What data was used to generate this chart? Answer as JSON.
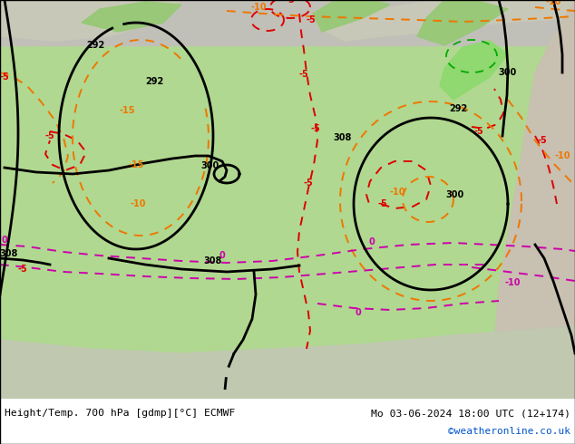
{
  "title_left": "Height/Temp. 700 hPa [gdmp][°C] ECMWF",
  "title_right": "Mo 03-06-2024 18:00 UTC (12+174)",
  "credit": "©weatheronline.co.uk",
  "credit_color": "#0055cc",
  "bg_green": "#b0d890",
  "bg_grey": "#c8c8c8",
  "bg_white": "#ffffff",
  "land_green_dark": "#8ec87a",
  "land_grey": "#b8b8a8",
  "c_black": "#000000",
  "c_red": "#dd0000",
  "c_orange": "#ee7700",
  "c_magenta": "#cc00aa",
  "c_green": "#00aa00",
  "lw_black": 2.0,
  "lw_color": 1.4
}
